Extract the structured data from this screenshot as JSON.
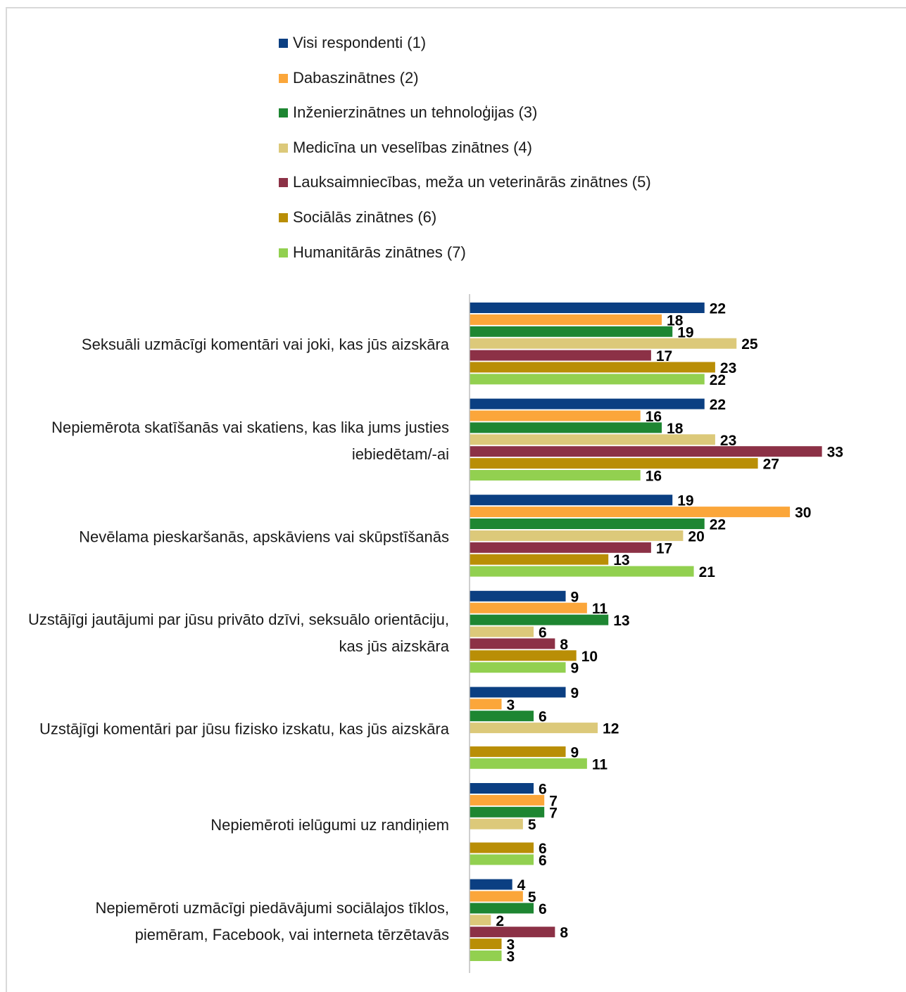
{
  "chart_data": {
    "type": "bar",
    "orientation": "horizontal",
    "legend_position": "top",
    "grid": false,
    "xlim": [
      0,
      35
    ],
    "series": [
      {
        "name": "Visi respondenti (1)",
        "color": "#0b3f82",
        "values": [
          22,
          22,
          19,
          9,
          9,
          6,
          4
        ]
      },
      {
        "name": "Dabaszinātnes (2)",
        "color": "#fba63a",
        "values": [
          18,
          16,
          30,
          11,
          3,
          7,
          5
        ]
      },
      {
        "name": "Inženierzinātnes un tehnoloģijas (3)",
        "color": "#1e8632",
        "values": [
          19,
          18,
          22,
          13,
          6,
          7,
          6
        ]
      },
      {
        "name": "Medicīna un veselības zinātnes (4)",
        "color": "#dcc97a",
        "values": [
          25,
          23,
          20,
          6,
          12,
          5,
          2
        ]
      },
      {
        "name": "Lauksaimniecības, meža un veterinārās zinātnes (5)",
        "color": "#8c3146",
        "values": [
          17,
          33,
          17,
          8,
          null,
          null,
          8
        ]
      },
      {
        "name": "Sociālās zinātnes (6)",
        "color": "#b98e06",
        "values": [
          23,
          27,
          13,
          10,
          9,
          6,
          3
        ]
      },
      {
        "name": "Humanitārās zinātnes (7)",
        "color": "#92d050",
        "values": [
          22,
          16,
          21,
          9,
          11,
          6,
          3
        ]
      }
    ],
    "categories": [
      [
        "Seksuāli uzmācīgi komentāri vai joki, kas jūs aizskāra"
      ],
      [
        "Nepiemērota skatīšanās vai skatiens, kas lika jums justies",
        "iebiedētam/-ai"
      ],
      [
        "Nevēlama pieskaršanās, apskāviens vai skūpstīšanās"
      ],
      [
        "Uzstājīgi jautājumi par jūsu privāto dzīvi, seksuālo orientāciju,",
        "kas jūs aizskāra"
      ],
      [
        "Uzstājīgi komentāri par jūsu fizisko izskatu, kas jūs aizskāra"
      ],
      [
        "Nepiemēroti ielūgumi uz randiņiem"
      ],
      [
        "Nepiemēroti uzmācīgi piedāvājumi sociālajos tīklos,",
        "piemēram, Facebook, vai interneta tērzētavās"
      ]
    ]
  }
}
